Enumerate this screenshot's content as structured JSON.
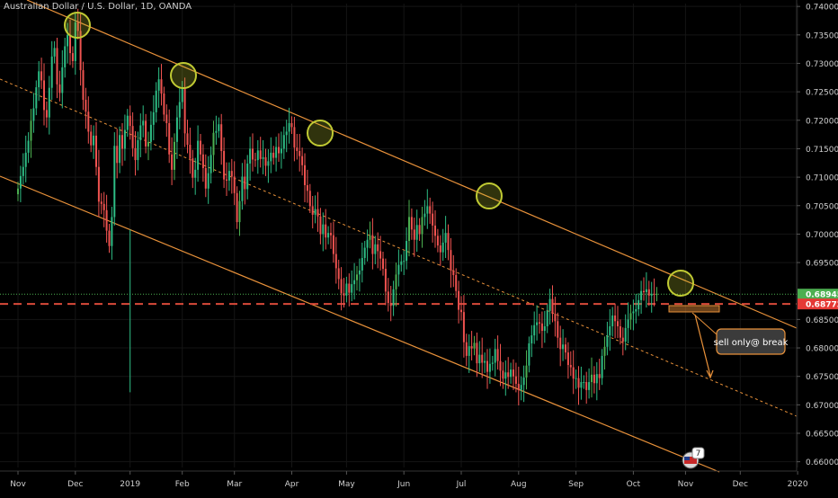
{
  "symbol_title": "Australian Dollar / U.S. Dollar, 1D, OANDA",
  "colors": {
    "background": "#000000",
    "candle_up": "#26a69a",
    "candle_up_alt": "#4caf50",
    "candle_down": "#ef5350",
    "channel_line": "#e8913a",
    "mid_line": "#e8913a",
    "support_line": "#d94a3a",
    "last_price_line": "#4caf50",
    "highlight_circle": "#c0ca33",
    "annotation_fill": "#3b3b3b",
    "annotation_border": "#e8913a",
    "axis_text": "#cfcfcf"
  },
  "annotation": {
    "text": "sell only@ break"
  },
  "badge": {
    "text": "7"
  },
  "chart_data": {
    "type": "candlestick",
    "title": "Australian Dollar / U.S. Dollar, 1D, OANDA",
    "y_axis": {
      "min": 0.66,
      "max": 0.74,
      "ticks": [
        "0.74000",
        "0.73500",
        "0.73000",
        "0.72500",
        "0.72000",
        "0.71500",
        "0.71000",
        "0.70500",
        "0.70000",
        "0.69500",
        "0.68500",
        "0.68000",
        "0.67500",
        "0.67000",
        "0.66500",
        "0.66000"
      ],
      "tick_values": [
        0.74,
        0.735,
        0.73,
        0.725,
        0.72,
        0.715,
        0.71,
        0.705,
        0.7,
        0.695,
        0.685,
        0.68,
        0.675,
        0.67,
        0.665,
        0.66
      ]
    },
    "x_axis": {
      "labels": [
        "Nov",
        "Dec",
        "2019",
        "Feb",
        "Mar",
        "Apr",
        "May",
        "Jun",
        "Jul",
        "Aug",
        "Sep",
        "Oct",
        "Nov",
        "Dec",
        "2020"
      ],
      "label_index": [
        0,
        22,
        43,
        63,
        83,
        105,
        126,
        148,
        170,
        192,
        214,
        236,
        256,
        277,
        299
      ]
    },
    "price_labels": [
      {
        "text": "0.68945",
        "value": 0.68945,
        "color": "#4caf50"
      },
      {
        "text": "0.68772",
        "value": 0.68772,
        "color": "#e53935"
      }
    ],
    "closes": [
      0.708,
      0.7102,
      0.7118,
      0.7143,
      0.7164,
      0.7199,
      0.7221,
      0.7258,
      0.7286,
      0.727,
      0.7218,
      0.7205,
      0.7257,
      0.7312,
      0.7327,
      0.7263,
      0.7248,
      0.7293,
      0.733,
      0.735,
      0.7318,
      0.7304,
      0.7372,
      0.7357,
      0.7288,
      0.7236,
      0.7215,
      0.718,
      0.7156,
      0.7173,
      0.7118,
      0.7057,
      0.7053,
      0.7042,
      0.7006,
      0.6979,
      0.703,
      0.7155,
      0.7125,
      0.7174,
      0.715,
      0.7183,
      0.7208,
      0.719,
      0.7151,
      0.713,
      0.7165,
      0.7191,
      0.7199,
      0.7154,
      0.7162,
      0.7192,
      0.7214,
      0.7252,
      0.7272,
      0.7247,
      0.721,
      0.7195,
      0.714,
      0.7113,
      0.7162,
      0.7205,
      0.7232,
      0.7257,
      0.7177,
      0.7157,
      0.7133,
      0.7099,
      0.7113,
      0.7164,
      0.714,
      0.7116,
      0.708,
      0.7107,
      0.7139,
      0.7178,
      0.7181,
      0.7193,
      0.7146,
      0.7096,
      0.7094,
      0.7111,
      0.7101,
      0.7072,
      0.7021,
      0.7058,
      0.7101,
      0.7079,
      0.7124,
      0.715,
      0.7131,
      0.713,
      0.7147,
      0.7132,
      0.7135,
      0.712,
      0.7128,
      0.7143,
      0.7134,
      0.7153,
      0.7142,
      0.715,
      0.7174,
      0.718,
      0.7195,
      0.7188,
      0.7152,
      0.7146,
      0.7137,
      0.7121,
      0.7086,
      0.7076,
      0.7049,
      0.7034,
      0.7044,
      0.7031,
      0.7,
      0.7017,
      0.6994,
      0.7002,
      0.6998,
      0.6965,
      0.694,
      0.6921,
      0.6896,
      0.6892,
      0.6913,
      0.6897,
      0.6912,
      0.6919,
      0.6929,
      0.6936,
      0.6958,
      0.6976,
      0.699,
      0.6998,
      0.6965,
      0.6982,
      0.697,
      0.6957,
      0.6939,
      0.6899,
      0.6879,
      0.6874,
      0.6903,
      0.6929,
      0.6946,
      0.6952,
      0.6953,
      0.6988,
      0.703,
      0.7008,
      0.699,
      0.7016,
      0.7,
      0.703,
      0.7036,
      0.7049,
      0.7036,
      0.7015,
      0.6997,
      0.698,
      0.6968,
      0.6985,
      0.7002,
      0.6972,
      0.6936,
      0.6928,
      0.69,
      0.6867,
      0.6863,
      0.681,
      0.6786,
      0.6803,
      0.6799,
      0.6809,
      0.6773,
      0.6788,
      0.6774,
      0.6777,
      0.6758,
      0.6772,
      0.6774,
      0.6798,
      0.6777,
      0.676,
      0.6746,
      0.6757,
      0.6749,
      0.6762,
      0.675,
      0.6737,
      0.6726,
      0.6735,
      0.6748,
      0.6769,
      0.6808,
      0.6822,
      0.684,
      0.6845,
      0.6843,
      0.683,
      0.6838,
      0.6865,
      0.6886,
      0.686,
      0.6847,
      0.6818,
      0.6798,
      0.6806,
      0.6792,
      0.677,
      0.6766,
      0.6746,
      0.6747,
      0.673,
      0.674,
      0.674,
      0.6726,
      0.674,
      0.6753,
      0.6738,
      0.6754,
      0.6747,
      0.6786,
      0.6802,
      0.6822,
      0.6838,
      0.6857,
      0.6847,
      0.6838,
      0.6818,
      0.6811,
      0.6835,
      0.685,
      0.6861,
      0.6864,
      0.6868,
      0.6884,
      0.69,
      0.6898,
      0.6903,
      0.6892,
      0.6895,
      0.6894,
      0.6895
    ]
  }
}
